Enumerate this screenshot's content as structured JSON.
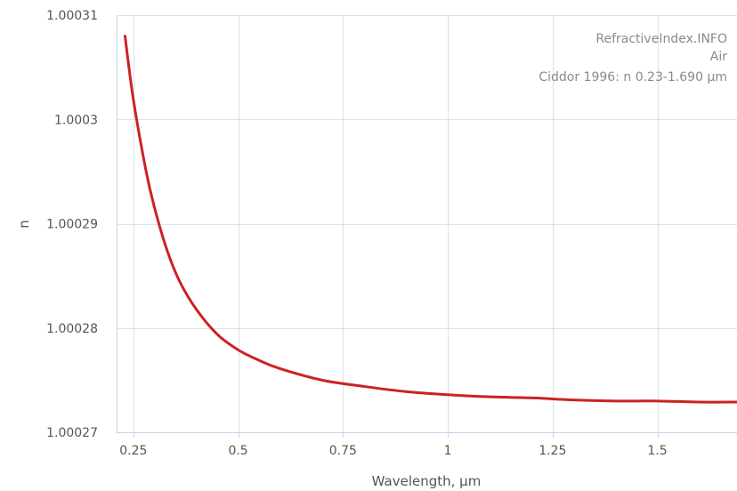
{
  "credits": {
    "site": "RefractiveIndex.INFO",
    "material": "Air",
    "dataset": "Ciddor 1996: n 0.23-1.690 µm"
  },
  "chart_data": {
    "type": "line",
    "xlabel": "Wavelength, µm",
    "ylabel": "n",
    "xlim": [
      0.21,
      1.69
    ],
    "ylim": [
      1.00027,
      1.00031
    ],
    "x_ticks": [
      {
        "value": 0.25,
        "label": "0.25"
      },
      {
        "value": 0.5,
        "label": "0.5"
      },
      {
        "value": 0.75,
        "label": "0.75"
      },
      {
        "value": 1.0,
        "label": "1"
      },
      {
        "value": 1.25,
        "label": "1.25"
      },
      {
        "value": 1.5,
        "label": "1.5"
      }
    ],
    "y_ticks": [
      {
        "value": 1.00027,
        "label": "1.00027"
      },
      {
        "value": 1.00028,
        "label": "1.00028"
      },
      {
        "value": 1.00029,
        "label": "1.00029"
      },
      {
        "value": 1.0003,
        "label": "1.0003"
      },
      {
        "value": 1.00031,
        "label": "1.00031"
      }
    ],
    "grid": true,
    "line_color": "#cc2222",
    "gridline_color": "#d9e1ec",
    "axis_color": "#c5d4ea",
    "series": [
      {
        "x": [
          0.23,
          0.25,
          0.28,
          0.3,
          0.33,
          0.36,
          0.4,
          0.45,
          0.5,
          0.55,
          0.6,
          0.7,
          0.8,
          0.9,
          1.0,
          1.1,
          1.2,
          1.3,
          1.4,
          1.5,
          1.6,
          1.69
        ],
        "y": [
          1.000308,
          1.0003019,
          1.0002951,
          1.0002916,
          1.0002875,
          1.0002845,
          1.0002818,
          1.0002794,
          1.0002779,
          1.0002769,
          1.0002761,
          1.000275,
          1.0002744,
          1.0002739,
          1.0002736,
          1.0002734,
          1.0002733,
          1.0002731,
          1.000273,
          1.000273,
          1.0002729,
          1.0002729
        ]
      }
    ]
  }
}
